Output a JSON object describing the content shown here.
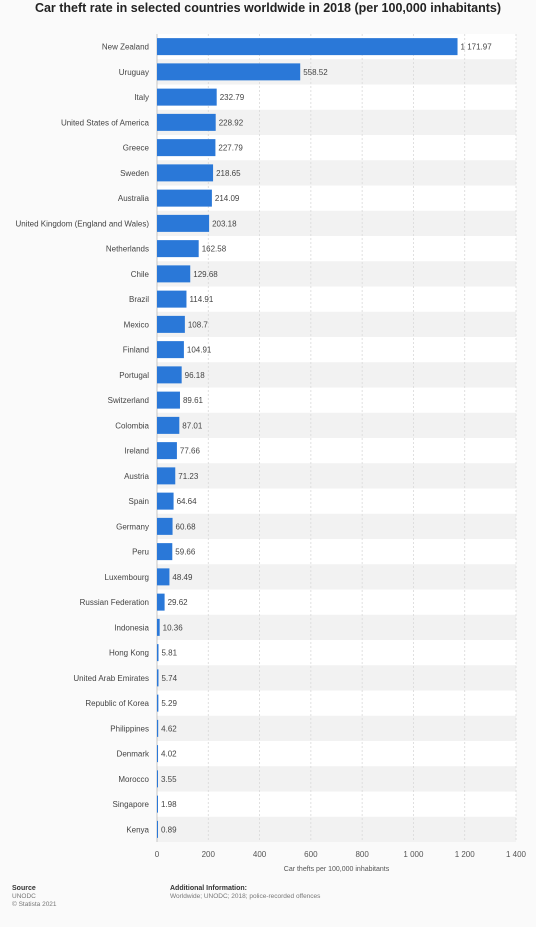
{
  "chart_data": {
    "type": "bar",
    "orientation": "horizontal",
    "title": "Car theft rate in selected countries worldwide in 2018 (per 100,000 inhabitants)",
    "xlabel": "Car thefts per 100,000 inhabitants",
    "ylabel": "",
    "xlim": [
      0,
      1400
    ],
    "ticks": [
      0,
      200,
      400,
      600,
      800,
      1000,
      1200,
      1400
    ],
    "tick_labels": [
      "0",
      "200",
      "400",
      "600",
      "800",
      "1 000",
      "1 200",
      "1 400"
    ],
    "bar_color": "#2a78d8",
    "grid": true,
    "categories": [
      "New Zealand",
      "Uruguay",
      "Italy",
      "United States of America",
      "Greece",
      "Sweden",
      "Australia",
      "United Kingdom (England and Wales)",
      "Netherlands",
      "Chile",
      "Brazil",
      "Mexico",
      "Finland",
      "Portugal",
      "Switzerland",
      "Colombia",
      "Ireland",
      "Austria",
      "Spain",
      "Germany",
      "Peru",
      "Luxembourg",
      "Russian Federation",
      "Indonesia",
      "Hong Kong",
      "United Arab Emirates",
      "Republic of Korea",
      "Philippines",
      "Denmark",
      "Morocco",
      "Singapore",
      "Kenya"
    ],
    "values": [
      1171.97,
      558.52,
      232.79,
      228.92,
      227.79,
      218.65,
      214.09,
      203.18,
      162.58,
      129.68,
      114.91,
      108.7,
      104.91,
      96.18,
      89.61,
      87.01,
      77.66,
      71.23,
      64.64,
      60.68,
      59.66,
      48.49,
      29.62,
      10.36,
      5.81,
      5.74,
      5.29,
      4.62,
      4.02,
      3.55,
      1.98,
      0.89
    ],
    "value_labels": [
      "1 171.97",
      "558.52",
      "232.79",
      "228.92",
      "227.79",
      "218.65",
      "214.09",
      "203.18",
      "162.58",
      "129.68",
      "114.91",
      "108.7",
      "104.91",
      "96.18",
      "89.61",
      "87.01",
      "77.66",
      "71.23",
      "64.64",
      "60.68",
      "59.66",
      "48.49",
      "29.62",
      "10.36",
      "5.81",
      "5.74",
      "5.29",
      "4.62",
      "4.02",
      "3.55",
      "1.98",
      "0.89"
    ]
  },
  "footer": {
    "source_heading": "Source",
    "source_name": "UNODC",
    "copyright": "© Statista 2021",
    "info_heading": "Additional Information:",
    "info_text": "Worldwide; UNODC; 2018; police-recorded offences"
  }
}
